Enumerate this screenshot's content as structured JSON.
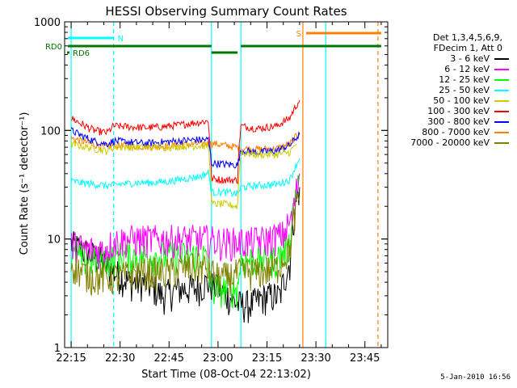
{
  "chart_data": {
    "type": "line",
    "title": "HESSI Observing Summary Count Rates",
    "xlabel": "Start Time (08-Oct-04 22:13:02)",
    "ylabel": "Count Rate (s⁻¹ detector⁻¹)",
    "ylim": [
      1,
      1000
    ],
    "yscale": "log",
    "xlim_minutes": [
      22.2167,
      23.8667
    ],
    "x_ticks": [
      "22:15",
      "22:30",
      "22:45",
      "23:00",
      "23:15",
      "23:30",
      "23:45"
    ],
    "y_ticks": [
      "1",
      "10",
      "100",
      "1000"
    ],
    "grid": false,
    "legend_position": "right",
    "legend_header": [
      "Det 1,3,4,5,6,9,",
      "FDecim 1, Att 0"
    ],
    "timestamp": "5-Jan-2010 16:56",
    "flags": [
      {
        "label": "N",
        "color": "#00ffff",
        "segments": [
          [
            "22:14",
            "22:28"
          ]
        ]
      },
      {
        "label": "S",
        "color": "#ff8000",
        "segments": [
          [
            "23:27",
            "23:50"
          ]
        ]
      },
      {
        "label": "RD0",
        "color": "#007700",
        "segments": [
          [
            "22:14",
            "22:58"
          ],
          [
            "23:07",
            "23:50"
          ]
        ]
      },
      {
        "label": "RD6",
        "color": "#007700",
        "segments": [
          [
            "22:58",
            "23:06"
          ]
        ]
      }
    ],
    "vlines": [
      {
        "t": "22:15",
        "color": "#00ffff",
        "style": "solid"
      },
      {
        "t": "22:28",
        "color": "#00ffff",
        "style": "dashed"
      },
      {
        "t": "22:58",
        "color": "#00ffff",
        "style": "solid"
      },
      {
        "t": "23:07",
        "color": "#00ffff",
        "style": "solid"
      },
      {
        "t": "23:26",
        "color": "#ff8000",
        "style": "solid"
      },
      {
        "t": "23:33",
        "color": "#00ffff",
        "style": "solid"
      },
      {
        "t": "23:49",
        "color": "#ff8000",
        "style": "dashed"
      }
    ],
    "series": [
      {
        "name": "3 - 6 keV",
        "color": "#000000",
        "points": [
          [
            "22:15",
            9
          ],
          [
            "22:18",
            8
          ],
          [
            "22:22",
            7
          ],
          [
            "22:25",
            6
          ],
          [
            "22:28",
            5
          ],
          [
            "22:33",
            4
          ],
          [
            "22:38",
            4
          ],
          [
            "22:43",
            3
          ],
          [
            "22:48",
            3.5
          ],
          [
            "22:53",
            3.5
          ],
          [
            "22:57",
            4
          ],
          [
            "23:00",
            3.5
          ],
          [
            "23:03",
            3
          ],
          [
            "23:06",
            2.5
          ],
          [
            "23:10",
            2.5
          ],
          [
            "23:15",
            3
          ],
          [
            "23:19",
            3
          ],
          [
            "23:22",
            6
          ],
          [
            "23:25",
            30
          ]
        ]
      },
      {
        "name": "6 - 12 keV",
        "color": "#ff00ff",
        "points": [
          [
            "22:15",
            9
          ],
          [
            "22:20",
            8
          ],
          [
            "22:25",
            8
          ],
          [
            "22:28",
            9.5
          ],
          [
            "22:33",
            10
          ],
          [
            "22:38",
            10
          ],
          [
            "22:43",
            10
          ],
          [
            "22:48",
            10
          ],
          [
            "22:53",
            10
          ],
          [
            "22:57",
            10
          ],
          [
            "23:00",
            9.5
          ],
          [
            "23:03",
            9.5
          ],
          [
            "23:06",
            9.5
          ],
          [
            "23:10",
            9.5
          ],
          [
            "23:15",
            10
          ],
          [
            "23:20",
            11
          ],
          [
            "23:23",
            16
          ],
          [
            "23:25",
            40
          ]
        ]
      },
      {
        "name": "12 - 25 keV",
        "color": "#00ff00",
        "points": [
          [
            "22:15",
            7
          ],
          [
            "22:20",
            6.5
          ],
          [
            "22:25",
            6.5
          ],
          [
            "22:30",
            7
          ],
          [
            "22:35",
            7
          ],
          [
            "22:40",
            7
          ],
          [
            "22:45",
            7
          ],
          [
            "22:50",
            7
          ],
          [
            "22:56",
            7
          ],
          [
            "22:58",
            3.5
          ],
          [
            "23:02",
            3.5
          ],
          [
            "23:06",
            3.5
          ],
          [
            "23:07",
            6.5
          ],
          [
            "23:12",
            6.5
          ],
          [
            "23:18",
            6.5
          ],
          [
            "23:22",
            9
          ],
          [
            "23:25",
            40
          ]
        ]
      },
      {
        "name": "25 - 50 keV",
        "color": "#00ffff",
        "points": [
          [
            "22:15",
            34
          ],
          [
            "22:18",
            33
          ],
          [
            "22:22",
            32
          ],
          [
            "22:26",
            31
          ],
          [
            "22:30",
            32
          ],
          [
            "22:35",
            33
          ],
          [
            "22:40",
            33
          ],
          [
            "22:45",
            34
          ],
          [
            "22:50",
            36
          ],
          [
            "22:55",
            38
          ],
          [
            "22:57",
            41
          ],
          [
            "22:58",
            27
          ],
          [
            "23:02",
            27
          ],
          [
            "23:06",
            26
          ],
          [
            "23:07",
            30
          ],
          [
            "23:12",
            31
          ],
          [
            "23:18",
            32
          ],
          [
            "23:22",
            35
          ],
          [
            "23:25",
            55
          ]
        ]
      },
      {
        "name": "50 - 100 keV",
        "color": "#cccc00",
        "points": [
          [
            "22:15",
            75
          ],
          [
            "22:18",
            72
          ],
          [
            "22:22",
            68
          ],
          [
            "22:26",
            65
          ],
          [
            "22:28",
            70
          ],
          [
            "22:33",
            70
          ],
          [
            "22:40",
            70
          ],
          [
            "22:45",
            70
          ],
          [
            "22:50",
            72
          ],
          [
            "22:57",
            72
          ],
          [
            "22:58",
            21
          ],
          [
            "23:02",
            21
          ],
          [
            "23:06",
            20
          ],
          [
            "23:07",
            62
          ],
          [
            "23:12",
            60
          ],
          [
            "23:18",
            60
          ],
          [
            "23:22",
            63
          ],
          [
            "23:24",
            75
          ]
        ]
      },
      {
        "name": "100 - 300 keV",
        "color": "#ff0000",
        "points": [
          [
            "22:15",
            130
          ],
          [
            "22:18",
            115
          ],
          [
            "22:22",
            100
          ],
          [
            "22:26",
            95
          ],
          [
            "22:28",
            110
          ],
          [
            "22:33",
            108
          ],
          [
            "22:38",
            106
          ],
          [
            "22:43",
            108
          ],
          [
            "22:48",
            112
          ],
          [
            "22:53",
            118
          ],
          [
            "22:57",
            122
          ],
          [
            "22:58",
            36
          ],
          [
            "23:02",
            35
          ],
          [
            "23:06",
            35
          ],
          [
            "23:07",
            110
          ],
          [
            "23:12",
            104
          ],
          [
            "23:18",
            110
          ],
          [
            "23:22",
            130
          ],
          [
            "23:25",
            190
          ]
        ]
      },
      {
        "name": "300 - 800 keV",
        "color": "#0000ff",
        "points": [
          [
            "22:15",
            100
          ],
          [
            "22:18",
            90
          ],
          [
            "22:22",
            80
          ],
          [
            "22:26",
            75
          ],
          [
            "22:28",
            80
          ],
          [
            "22:33",
            78
          ],
          [
            "22:38",
            76
          ],
          [
            "22:43",
            78
          ],
          [
            "22:48",
            80
          ],
          [
            "22:53",
            82
          ],
          [
            "22:57",
            82
          ],
          [
            "22:58",
            50
          ],
          [
            "23:02",
            49
          ],
          [
            "23:06",
            48
          ],
          [
            "23:07",
            65
          ],
          [
            "23:12",
            63
          ],
          [
            "23:18",
            65
          ],
          [
            "23:22",
            73
          ],
          [
            "23:25",
            92
          ]
        ]
      },
      {
        "name": "800 - 7000 keV",
        "color": "#ff8000",
        "points": [
          [
            "22:15",
            85
          ],
          [
            "22:18",
            80
          ],
          [
            "22:22",
            74
          ],
          [
            "22:26",
            70
          ],
          [
            "22:28",
            73
          ],
          [
            "22:33",
            72
          ],
          [
            "22:38",
            71
          ],
          [
            "22:43",
            72
          ],
          [
            "22:48",
            73
          ],
          [
            "22:53",
            75
          ],
          [
            "22:57",
            76
          ],
          [
            "22:58",
            76
          ],
          [
            "23:02",
            73
          ],
          [
            "23:06",
            70
          ],
          [
            "23:07",
            68
          ],
          [
            "23:12",
            67
          ],
          [
            "23:18",
            68
          ],
          [
            "23:22",
            75
          ],
          [
            "23:25",
            95
          ]
        ]
      },
      {
        "name": "7000 - 20000 keV",
        "color": "#808000",
        "points": [
          [
            "22:15",
            6
          ],
          [
            "22:18",
            5
          ],
          [
            "22:22",
            4.5
          ],
          [
            "22:26",
            4.5
          ],
          [
            "22:30",
            4.5
          ],
          [
            "22:35",
            5
          ],
          [
            "22:40",
            5
          ],
          [
            "22:45",
            5
          ],
          [
            "22:50",
            5.5
          ],
          [
            "22:56",
            5.5
          ],
          [
            "23:00",
            4.5
          ],
          [
            "23:03",
            4.5
          ],
          [
            "23:07",
            5
          ],
          [
            "23:12",
            5
          ],
          [
            "23:18",
            5.5
          ],
          [
            "23:22",
            8
          ],
          [
            "23:25",
            25
          ]
        ]
      }
    ]
  }
}
